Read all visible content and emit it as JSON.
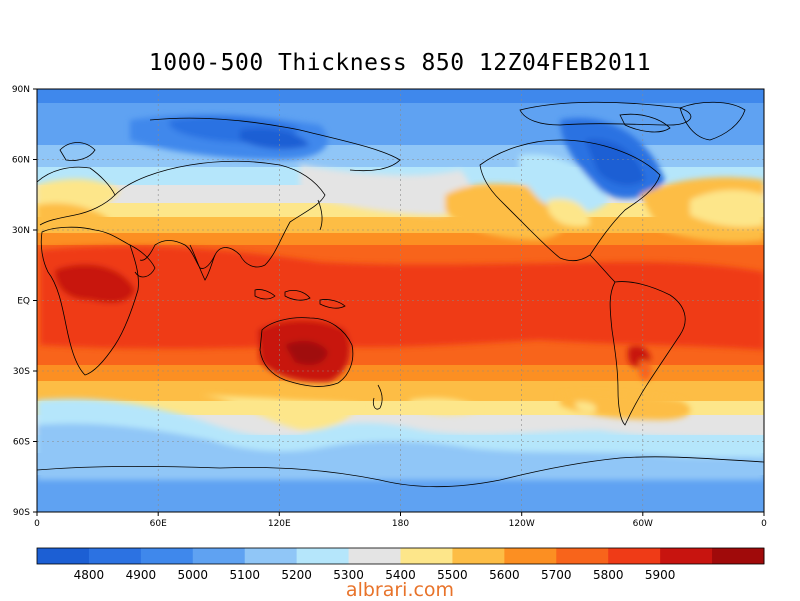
{
  "title": "1000-500 Thickness 850 12Z04FEB2011",
  "watermark": "albrari.com",
  "lat_ticks": [
    "90N",
    "60N",
    "30N",
    "EQ",
    "30S",
    "60S",
    "90S"
  ],
  "lon_ticks": [
    "0",
    "60E",
    "120E",
    "180",
    "120W",
    "60W",
    "0"
  ],
  "colorbar": {
    "colors": [
      "#1c5fd4",
      "#2c72e2",
      "#3f88ec",
      "#5fa2f2",
      "#90c6f7",
      "#b5e6fb",
      "#e4e4e4",
      "#fde68a",
      "#fdbd45",
      "#fc8f22",
      "#f8641b",
      "#ef3b17",
      "#c8140f",
      "#a00a0a"
    ],
    "labels": [
      "4800",
      "4900",
      "5000",
      "5100",
      "5200",
      "5300",
      "5400",
      "5500",
      "5600",
      "5700",
      "5800",
      "5900"
    ]
  },
  "chart_data": {
    "type": "heatmap",
    "title": "1000-500 Thickness 850 12Z04FEB2011",
    "x_ticks": [
      "0",
      "60E",
      "120E",
      "180",
      "120W",
      "60W",
      "0"
    ],
    "y_ticks": [
      "90N",
      "60N",
      "30N",
      "EQ",
      "30S",
      "60S",
      "90S"
    ],
    "xlim": [
      0,
      360
    ],
    "ylim": [
      -90,
      90
    ],
    "legend": "bottom",
    "levels": [
      4800,
      4900,
      5000,
      5100,
      5200,
      5300,
      5400,
      5500,
      5600,
      5700,
      5800,
      5900
    ],
    "grid": true
  }
}
